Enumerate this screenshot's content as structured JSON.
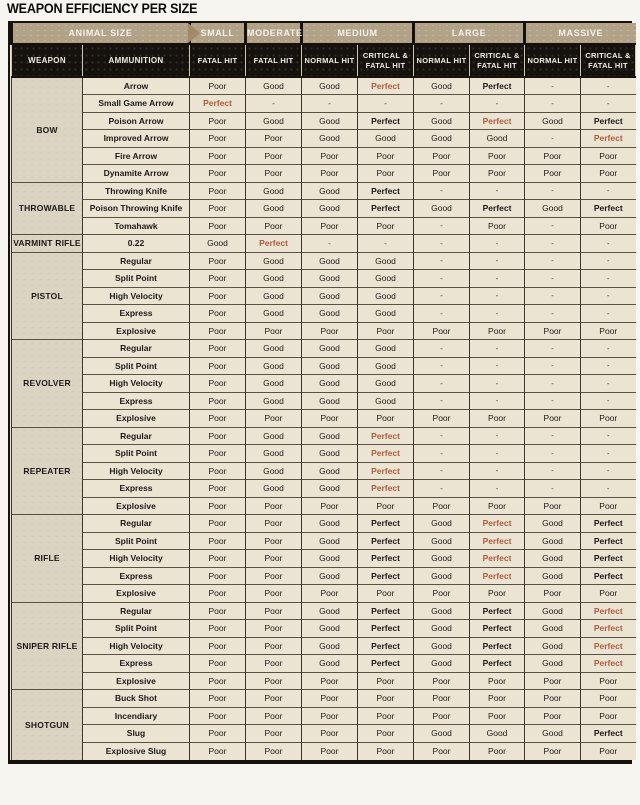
{
  "title": "WEAPON EFFICIENCY PER SIZE",
  "colors": {
    "accent_red": "#b15c3e",
    "header_black": "#15110d",
    "banner_dark_tan": "#a28a67",
    "banner_light_tan": "#b2a287",
    "cell_cream": "#ece4d3",
    "weapon_column_beige": "#dcd4c2"
  },
  "chart_data": {
    "type": "table",
    "title": "WEAPON EFFICIENCY PER SIZE",
    "size_axis_label": "ANIMAL SIZE",
    "corner_headers": [
      "WEAPON",
      "AMMUNITION"
    ],
    "size_groups": [
      {
        "label": "SMALL",
        "subcols": [
          "FATAL HIT"
        ]
      },
      {
        "label": "MODERATE",
        "subcols": [
          "FATAL HIT"
        ]
      },
      {
        "label": "MEDIUM",
        "subcols": [
          "NORMAL HIT",
          "CRITICAL & FATAL HIT"
        ]
      },
      {
        "label": "LARGE",
        "subcols": [
          "NORMAL HIT",
          "CRITICAL & FATAL HIT"
        ]
      },
      {
        "label": "MASSIVE",
        "subcols": [
          "NORMAL HIT",
          "CRITICAL & FATAL HIT"
        ]
      }
    ],
    "groups": [
      {
        "weapon": "BOW",
        "rows": [
          {
            "ammo": "Arrow",
            "cells": [
              "Poor",
              "Good",
              "Good",
              {
                "v": "Perfect",
                "red": true
              },
              "Good",
              "Perfect",
              "-",
              "-"
            ]
          },
          {
            "ammo": "Small Game Arrow",
            "cells": [
              {
                "v": "Perfect",
                "red": true
              },
              "-",
              "-",
              "-",
              "-",
              "-",
              "-",
              "-"
            ]
          },
          {
            "ammo": "Poison Arrow",
            "cells": [
              "Poor",
              "Good",
              "Good",
              "Perfect",
              "Good",
              {
                "v": "Perfect",
                "red": true
              },
              "Good",
              "Perfect"
            ]
          },
          {
            "ammo": "Improved Arrow",
            "cells": [
              "Poor",
              "Poor",
              "Good",
              "Good",
              "Good",
              "Good",
              "-",
              {
                "v": "Perfect",
                "red": true
              }
            ]
          },
          {
            "ammo": "Fire Arrow",
            "cells": [
              "Poor",
              "Poor",
              "Poor",
              "Poor",
              "Poor",
              "Poor",
              "Poor",
              "Poor"
            ]
          },
          {
            "ammo": "Dynamite Arrow",
            "cells": [
              "Poor",
              "Poor",
              "Poor",
              "Poor",
              "Poor",
              "Poor",
              "Poor",
              "Poor"
            ]
          }
        ]
      },
      {
        "weapon": "THROWABLE",
        "rows": [
          {
            "ammo": "Throwing Knife",
            "cells": [
              "Poor",
              "Good",
              "Good",
              "Perfect",
              "-",
              "-",
              "-",
              "-"
            ]
          },
          {
            "ammo": "Poison Throwing Knife",
            "cells": [
              "Poor",
              "Good",
              "Good",
              "Perfect",
              "Good",
              "Perfect",
              "Good",
              "Perfect"
            ]
          },
          {
            "ammo": "Tomahawk",
            "cells": [
              "Poor",
              "Poor",
              "Poor",
              "Poor",
              "-",
              "Poor",
              "-",
              "Poor"
            ]
          }
        ]
      },
      {
        "weapon": "VARMINT RIFLE",
        "rows": [
          {
            "ammo": "0.22",
            "cells": [
              "Good",
              {
                "v": "Perfect",
                "red": true
              },
              "-",
              "-",
              "-",
              "-",
              "-",
              "-"
            ]
          }
        ]
      },
      {
        "weapon": "PISTOL",
        "rows": [
          {
            "ammo": "Regular",
            "cells": [
              "Poor",
              "Good",
              "Good",
              "Good",
              "-",
              "-",
              "-",
              "-"
            ]
          },
          {
            "ammo": "Split Point",
            "cells": [
              "Poor",
              "Good",
              "Good",
              "Good",
              "-",
              "-",
              "-",
              "-"
            ]
          },
          {
            "ammo": "High Velocity",
            "cells": [
              "Poor",
              "Good",
              "Good",
              "Good",
              "-",
              "-",
              "-",
              "-"
            ]
          },
          {
            "ammo": "Express",
            "cells": [
              "Poor",
              "Good",
              "Good",
              "Good",
              "-",
              "-",
              "-",
              "-"
            ]
          },
          {
            "ammo": "Explosive",
            "cells": [
              "Poor",
              "Poor",
              "Poor",
              "Poor",
              "Poor",
              "Poor",
              "Poor",
              "Poor"
            ]
          }
        ]
      },
      {
        "weapon": "REVOLVER",
        "rows": [
          {
            "ammo": "Regular",
            "cells": [
              "Poor",
              "Good",
              "Good",
              "Good",
              "-",
              "-",
              "-",
              "-"
            ]
          },
          {
            "ammo": "Split Point",
            "cells": [
              "Poor",
              "Good",
              "Good",
              "Good",
              "-",
              "-",
              "-",
              "-"
            ]
          },
          {
            "ammo": "High Velocity",
            "cells": [
              "Poor",
              "Good",
              "Good",
              "Good",
              "-",
              "-",
              "-",
              "-"
            ]
          },
          {
            "ammo": "Express",
            "cells": [
              "Poor",
              "Good",
              "Good",
              "Good",
              "-",
              "-",
              "-",
              "-"
            ]
          },
          {
            "ammo": "Explosive",
            "cells": [
              "Poor",
              "Poor",
              "Poor",
              "Poor",
              "Poor",
              "Poor",
              "Poor",
              "Poor"
            ]
          }
        ]
      },
      {
        "weapon": "REPEATER",
        "rows": [
          {
            "ammo": "Regular",
            "cells": [
              "Poor",
              "Good",
              "Good",
              {
                "v": "Perfect",
                "red": true
              },
              "-",
              "-",
              "-",
              "-"
            ]
          },
          {
            "ammo": "Split Point",
            "cells": [
              "Poor",
              "Good",
              "Good",
              {
                "v": "Perfect",
                "red": true
              },
              "-",
              "-",
              "-",
              "-"
            ]
          },
          {
            "ammo": "High Velocity",
            "cells": [
              "Poor",
              "Good",
              "Good",
              {
                "v": "Perfect",
                "red": true
              },
              "-",
              "-",
              "-",
              "-"
            ]
          },
          {
            "ammo": "Express",
            "cells": [
              "Poor",
              "Good",
              "Good",
              {
                "v": "Perfect",
                "red": true
              },
              "-",
              "-",
              "-",
              "-"
            ]
          },
          {
            "ammo": "Explosive",
            "cells": [
              "Poor",
              "Poor",
              "Poor",
              "Poor",
              "Poor",
              "Poor",
              "Poor",
              "Poor"
            ]
          }
        ]
      },
      {
        "weapon": "RIFLE",
        "rows": [
          {
            "ammo": "Regular",
            "cells": [
              "Poor",
              "Poor",
              "Good",
              "Perfect",
              "Good",
              {
                "v": "Perfect",
                "red": true
              },
              "Good",
              "Perfect"
            ]
          },
          {
            "ammo": "Split Point",
            "cells": [
              "Poor",
              "Poor",
              "Good",
              "Perfect",
              "Good",
              {
                "v": "Perfect",
                "red": true
              },
              "Good",
              "Perfect"
            ]
          },
          {
            "ammo": "High Velocity",
            "cells": [
              "Poor",
              "Poor",
              "Good",
              "Perfect",
              "Good",
              {
                "v": "Perfect",
                "red": true
              },
              "Good",
              "Perfect"
            ]
          },
          {
            "ammo": "Express",
            "cells": [
              "Poor",
              "Poor",
              "Good",
              "Perfect",
              "Good",
              {
                "v": "Perfect",
                "red": true
              },
              "Good",
              "Perfect"
            ]
          },
          {
            "ammo": "Explosive",
            "cells": [
              "Poor",
              "Poor",
              "Poor",
              "Poor",
              "Poor",
              "Poor",
              "Poor",
              "Poor"
            ]
          }
        ]
      },
      {
        "weapon": "SNIPER RIFLE",
        "rows": [
          {
            "ammo": "Regular",
            "cells": [
              "Poor",
              "Poor",
              "Good",
              "Perfect",
              "Good",
              "Perfect",
              "Good",
              {
                "v": "Perfect",
                "red": true
              }
            ]
          },
          {
            "ammo": "Split Point",
            "cells": [
              "Poor",
              "Poor",
              "Good",
              "Perfect",
              "Good",
              "Perfect",
              "Good",
              {
                "v": "Perfect",
                "red": true
              }
            ]
          },
          {
            "ammo": "High Velocity",
            "cells": [
              "Poor",
              "Poor",
              "Good",
              "Perfect",
              "Good",
              "Perfect",
              "Good",
              {
                "v": "Perfect",
                "red": true
              }
            ]
          },
          {
            "ammo": "Express",
            "cells": [
              "Poor",
              "Poor",
              "Good",
              "Perfect",
              "Good",
              "Perfect",
              "Good",
              {
                "v": "Perfect",
                "red": true
              }
            ]
          },
          {
            "ammo": "Explosive",
            "cells": [
              "Poor",
              "Poor",
              "Poor",
              "Poor",
              "Poor",
              "Poor",
              "Poor",
              "Poor"
            ]
          }
        ]
      },
      {
        "weapon": "SHOTGUN",
        "rows": [
          {
            "ammo": "Buck Shot",
            "cells": [
              "Poor",
              "Poor",
              "Poor",
              "Poor",
              "Poor",
              "Poor",
              "Poor",
              "Poor"
            ]
          },
          {
            "ammo": "Incendiary",
            "cells": [
              "Poor",
              "Poor",
              "Poor",
              "Poor",
              "Poor",
              "Poor",
              "Poor",
              "Poor"
            ]
          },
          {
            "ammo": "Slug",
            "cells": [
              "Poor",
              "Poor",
              "Poor",
              "Poor",
              "Good",
              "Good",
              "Good",
              "Perfect"
            ]
          },
          {
            "ammo": "Explosive Slug",
            "cells": [
              "Poor",
              "Poor",
              "Poor",
              "Poor",
              "Poor",
              "Poor",
              "Poor",
              "Poor"
            ]
          }
        ]
      }
    ]
  }
}
